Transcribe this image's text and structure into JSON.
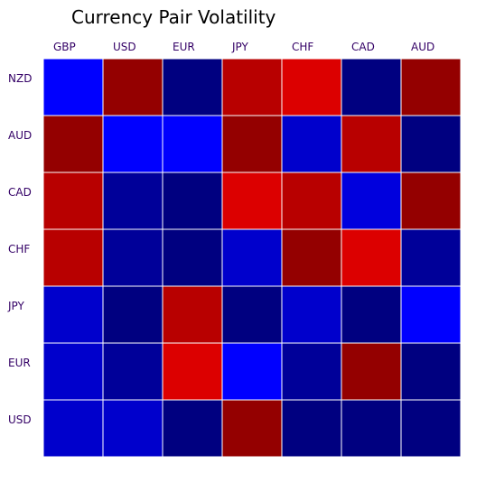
{
  "chart_data": {
    "type": "heatmap",
    "title": "Currency Pair Volatility",
    "x_categories": [
      "GBP",
      "USD",
      "EUR",
      "JPY",
      "CHF",
      "CAD",
      "AUD"
    ],
    "y_categories": [
      "NZD",
      "AUD",
      "CAD",
      "CHF",
      "JPY",
      "EUR",
      "USD"
    ],
    "cell_colors": [
      [
        "#0000ff",
        "#940000",
        "#000080",
        "#b80000",
        "#dc0000",
        "#000080",
        "#940000"
      ],
      [
        "#940000",
        "#0000ff",
        "#0000ff",
        "#940000",
        "#0000cc",
        "#b80000",
        "#000080"
      ],
      [
        "#b80000",
        "#000099",
        "#000080",
        "#dc0000",
        "#b80000",
        "#0000dd",
        "#940000"
      ],
      [
        "#b80000",
        "#000099",
        "#000080",
        "#0000cc",
        "#940000",
        "#dc0000",
        "#000099"
      ],
      [
        "#0000cc",
        "#000080",
        "#b80000",
        "#000080",
        "#0000cc",
        "#000080",
        "#0000ff"
      ],
      [
        "#0000cc",
        "#000099",
        "#dc0000",
        "#0000ff",
        "#000099",
        "#940000",
        "#000080"
      ],
      [
        "#0000cc",
        "#0000cc",
        "#000080",
        "#940000",
        "#000080",
        "#000080",
        "#000080"
      ]
    ],
    "colormap": "seismic (blue = low, red = high)",
    "legend": "none",
    "grid": false
  },
  "colors": {
    "tick_label": "#330066",
    "title": "#000000",
    "cell_border": "#ffffff"
  }
}
